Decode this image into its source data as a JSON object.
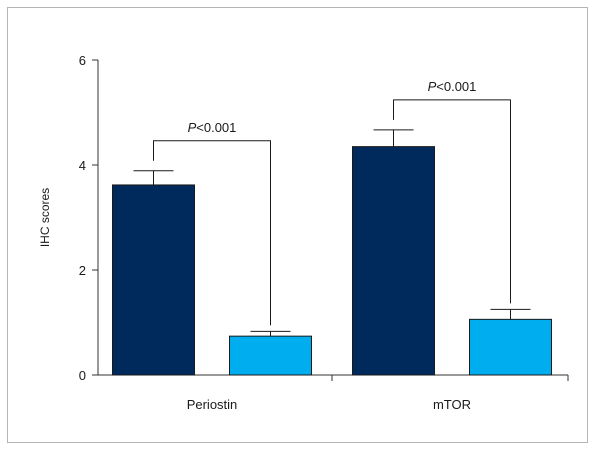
{
  "chart_data": {
    "type": "bar",
    "title": "",
    "xlabel": "",
    "ylabel": "IHC scores",
    "ylim": [
      0,
      6
    ],
    "yticks": [
      0,
      2,
      4,
      6
    ],
    "categories": [
      "Periostin",
      "mTOR"
    ],
    "series": [
      {
        "values": [
          3.62,
          4.35
        ],
        "errors": [
          0.27,
          0.32
        ],
        "color": "#002a5c"
      },
      {
        "values": [
          0.74,
          1.06
        ],
        "errors": [
          0.09,
          0.19
        ],
        "color": "#00aeef"
      }
    ],
    "annotations": [
      {
        "category": "Periostin",
        "p_symbol": "P",
        "p_text": "<0.001"
      },
      {
        "category": "mTOR",
        "p_symbol": "P",
        "p_text": "<0.001"
      }
    ],
    "grid": false,
    "legend": "none"
  }
}
